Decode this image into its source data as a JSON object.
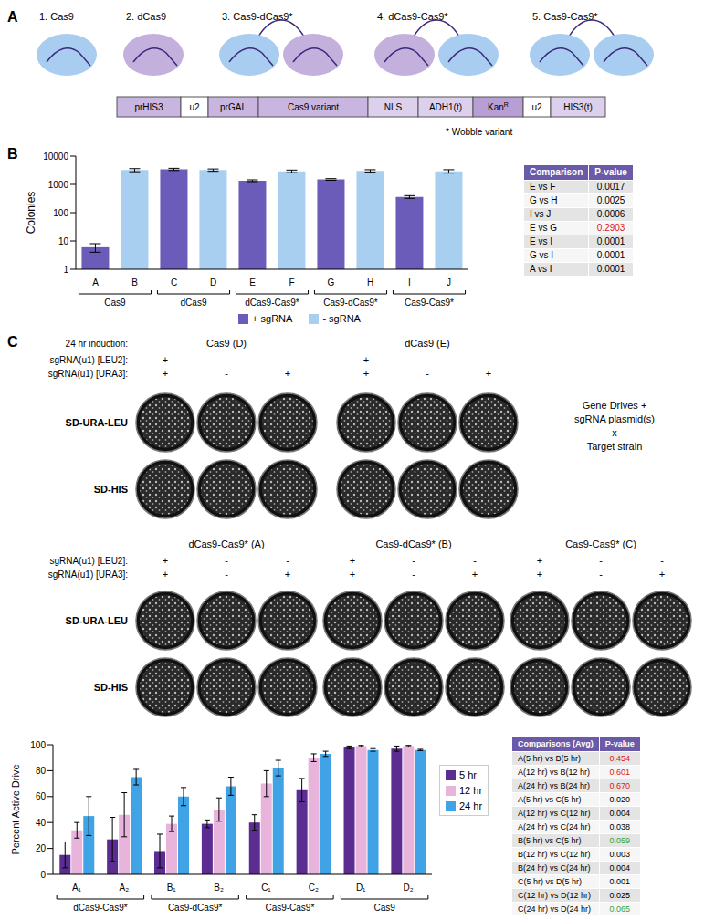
{
  "panel_labels": [
    "A",
    "B",
    "C"
  ],
  "diagram": {
    "proteins": [
      "1. Cas9",
      "2. dCas9",
      "3. Cas9-dCas9*",
      "4. dCas9-Cas9*",
      "5. Cas9-Cas9*"
    ],
    "construct": [
      {
        "label": "prHIS3",
        "color": "#c9b6e0"
      },
      {
        "label": "u2",
        "color": "#ffffff"
      },
      {
        "label": "prGAL",
        "color": "#c9b6e0"
      },
      {
        "label": "Cas9 variant",
        "color": "#c9b6e0"
      },
      {
        "label": "NLS",
        "color": "#dcd0ec"
      },
      {
        "label": "ADH1(t)",
        "color": "#dcd0ec"
      },
      {
        "label": "Kan",
        "sup": "R",
        "color": "#b79fd6"
      },
      {
        "label": "u2",
        "color": "#ffffff"
      },
      {
        "label": "HIS3(t)",
        "color": "#dcd0ec"
      }
    ],
    "note": "* Wobble variant"
  },
  "chart_data": [
    {
      "type": "bar",
      "y_label": "Colonies",
      "categories": [
        "A",
        "B",
        "C",
        "D",
        "E",
        "F",
        "G",
        "H",
        "I",
        "J"
      ],
      "groups": [
        {
          "label": "Cas9",
          "size": 2
        },
        {
          "label": "dCas9",
          "size": 2
        },
        {
          "label": "dCas9-Cas9*",
          "size": 2
        },
        {
          "label": "Cas9-dCas9*",
          "size": 2
        },
        {
          "label": "Cas9-Cas9*",
          "size": 2
        }
      ],
      "series": [
        {
          "name": "+ sgRNA",
          "color": "#6a5cb8",
          "values": [
            6,
            null,
            3400,
            null,
            1350,
            null,
            1500,
            null,
            360,
            null
          ],
          "errors": [
            2,
            null,
            300,
            null,
            100,
            null,
            100,
            null,
            40,
            null
          ]
        },
        {
          "name": "- sgRNA",
          "color": "#a8cff0",
          "values": [
            null,
            3200,
            null,
            3200,
            null,
            2900,
            null,
            3000,
            null,
            2900
          ],
          "errors": [
            null,
            400,
            null,
            300,
            null,
            300,
            null,
            300,
            null,
            400
          ]
        }
      ],
      "log": "y",
      "ylim": [
        1,
        10000
      ],
      "yticks": [
        1,
        10,
        100,
        1000,
        10000
      ],
      "grid": false,
      "legend": "bottom"
    },
    {
      "type": "bar",
      "y_label": "Percent Active Drive",
      "categories": [
        "A₁",
        "A₂",
        "B₁",
        "B₂",
        "C₁",
        "C₂",
        "D₁",
        "D₂"
      ],
      "groups": [
        {
          "label": "dCas9-Cas9*",
          "size": 2
        },
        {
          "label": "Cas9-dCas9*",
          "size": 2
        },
        {
          "label": "Cas9-Cas9*",
          "size": 2
        },
        {
          "label": "Cas9",
          "size": 2
        }
      ],
      "series": [
        {
          "name": "5 hr",
          "color": "#5c2d91",
          "values": [
            15,
            27,
            18,
            39,
            40,
            65,
            98,
            97
          ],
          "errors": [
            10,
            17,
            13,
            3,
            6,
            9,
            1,
            2
          ]
        },
        {
          "name": "12 hr",
          "color": "#e8b4dc",
          "values": [
            34,
            46,
            39,
            50,
            70,
            90,
            99,
            99
          ],
          "errors": [
            6,
            17,
            6,
            9,
            10,
            3,
            0.5,
            0.5
          ]
        },
        {
          "name": "24 hr",
          "color": "#3fa3e6",
          "values": [
            45,
            75,
            60,
            68,
            82,
            93,
            96,
            96
          ],
          "errors": [
            15,
            6,
            7,
            7,
            6,
            2,
            1,
            0.5
          ]
        }
      ],
      "ylim": [
        0,
        100
      ],
      "yticks": [
        0,
        20,
        40,
        60,
        80,
        100
      ],
      "grid": false,
      "legend": "right"
    }
  ],
  "tables": [
    {
      "header": [
        "Comparison",
        "P-value"
      ],
      "rows": [
        {
          "comparison": "E vs F",
          "p": "0.0017"
        },
        {
          "comparison": "G vs H",
          "p": "0.0025"
        },
        {
          "comparison": "I vs J",
          "p": "0.0006"
        },
        {
          "comparison": "E vs G",
          "p": "0.2903",
          "color": "#e0201b"
        },
        {
          "comparison": "E vs I",
          "p": "0.0001"
        },
        {
          "comparison": "G vs I",
          "p": "0.0001"
        },
        {
          "comparison": "A vs I",
          "p": "0.0001"
        }
      ]
    },
    {
      "header": [
        "Comparisons (Avg)",
        "P-value"
      ],
      "rows": [
        {
          "comparison": "A(5 hr) vs B(5 hr)",
          "p": "0.454",
          "color": "#e0201b"
        },
        {
          "comparison": "A(12 hr) vs B(12 hr)",
          "p": "0.601",
          "color": "#e0201b"
        },
        {
          "comparison": "A(24 hr) vs B(24 hr)",
          "p": "0.670",
          "color": "#e0201b"
        },
        {
          "comparison": "A(5 hr) vs C(5 hr)",
          "p": "0.020"
        },
        {
          "comparison": "A(12 hr) vs C(12 hr)",
          "p": "0.004"
        },
        {
          "comparison": "A(24 hr) vs C(24 hr)",
          "p": "0.038"
        },
        {
          "comparison": "B(5 hr) vs C(5 hr)",
          "p": "0.059",
          "color": "#3aa33a"
        },
        {
          "comparison": "B(12 hr) vs C(12 hr)",
          "p": "0.003"
        },
        {
          "comparison": "B(24 hr) vs C(24 hr)",
          "p": "0.004"
        },
        {
          "comparison": "C(5 hr) vs D(5 hr)",
          "p": "0.001"
        },
        {
          "comparison": "C(12 hr) vs D(12 hr)",
          "p": "0.025"
        },
        {
          "comparison": "C(24 hr) vs D(24 hr)",
          "p": "0.065",
          "color": "#3aa33a"
        }
      ]
    }
  ],
  "plates": {
    "induction": "24 hr induction:",
    "row_labels": [
      "sgRNA(u1) [LEU2]:",
      "sgRNA(u1) [URA3]:"
    ],
    "signs": [
      [
        "+",
        "+"
      ],
      [
        "-",
        "-"
      ],
      [
        "-",
        "+"
      ]
    ],
    "media": [
      "SD-URA-LEU",
      "SD-HIS"
    ],
    "groups": [
      "Cas9 (D)",
      "dCas9 (E)",
      "dCas9-Cas9* (A)",
      "Cas9-dCas9* (B)",
      "Cas9-Cas9* (C)"
    ],
    "side_note": [
      "Gene Drives +",
      "sgRNA plasmid(s)",
      "x",
      "Target strain"
    ]
  }
}
